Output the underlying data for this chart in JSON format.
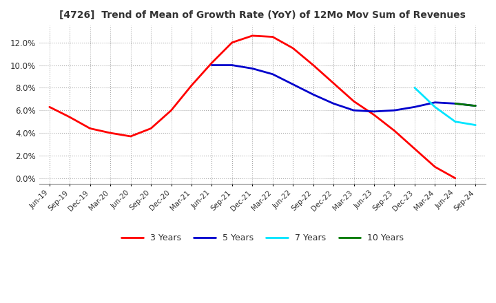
{
  "title": "[4726]  Trend of Mean of Growth Rate (YoY) of 12Mo Mov Sum of Revenues",
  "ylim": [
    -0.005,
    0.135
  ],
  "yticks": [
    0.0,
    0.02,
    0.04,
    0.06,
    0.08,
    0.1,
    0.12
  ],
  "ytick_labels": [
    "0.0%",
    "2.0%",
    "4.0%",
    "6.0%",
    "8.0%",
    "10.0%",
    "12.0%"
  ],
  "x_labels": [
    "Jun-19",
    "Sep-19",
    "Dec-19",
    "Mar-20",
    "Jun-20",
    "Sep-20",
    "Dec-20",
    "Mar-21",
    "Jun-21",
    "Sep-21",
    "Dec-21",
    "Mar-22",
    "Jun-22",
    "Sep-22",
    "Dec-22",
    "Mar-23",
    "Jun-23",
    "Sep-23",
    "Dec-23",
    "Mar-24",
    "Jun-24",
    "Sep-24"
  ],
  "line_3y_color": "#ff0000",
  "line_5y_color": "#0000cc",
  "line_7y_color": "#00e5ff",
  "line_10y_color": "#007700",
  "legend_labels": [
    "3 Years",
    "5 Years",
    "7 Years",
    "10 Years"
  ],
  "background_color": "#ffffff",
  "grid_color": "#aaaaaa",
  "title_color": "#333333",
  "line_3y": [
    0.063,
    0.054,
    0.044,
    0.04,
    0.037,
    0.044,
    0.06,
    0.082,
    0.102,
    0.12,
    0.126,
    0.125,
    0.115,
    0.1,
    0.084,
    0.068,
    0.056,
    0.042,
    0.026,
    0.01,
    0.0,
    null
  ],
  "line_5y": [
    null,
    null,
    null,
    null,
    null,
    null,
    null,
    null,
    0.1,
    0.1,
    0.097,
    0.092,
    0.083,
    0.074,
    0.066,
    0.06,
    0.059,
    0.06,
    0.063,
    0.067,
    0.066,
    0.064
  ],
  "line_7y": [
    null,
    null,
    null,
    null,
    null,
    null,
    null,
    null,
    null,
    null,
    null,
    null,
    null,
    null,
    null,
    null,
    null,
    null,
    0.08,
    0.063,
    0.05,
    0.047
  ],
  "line_10y": [
    null,
    null,
    null,
    null,
    null,
    null,
    null,
    null,
    null,
    null,
    null,
    null,
    null,
    null,
    null,
    null,
    null,
    null,
    null,
    null,
    0.066,
    0.064
  ]
}
